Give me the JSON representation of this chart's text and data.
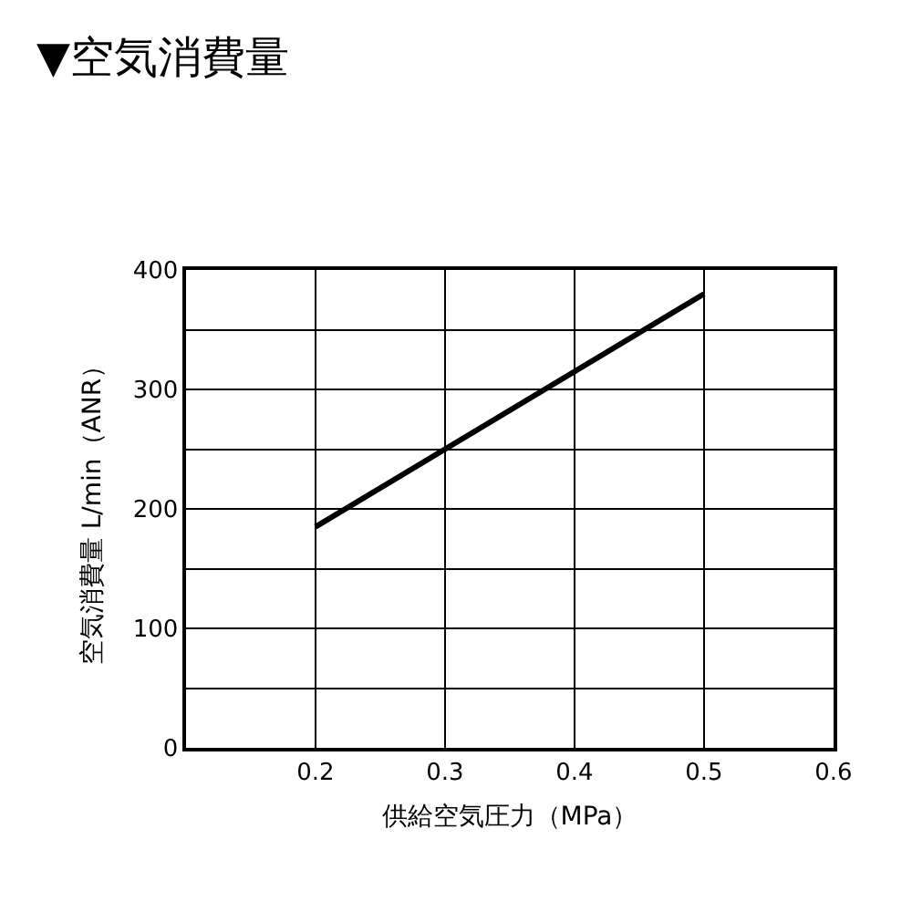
{
  "chart_data": {
    "type": "line",
    "title": "▼空気消費量",
    "xlabel": "供給空気圧力（MPa）",
    "ylabel": "空気消費量 L/min（ANR）",
    "x": [
      0.2,
      0.5
    ],
    "series": [
      {
        "color": "#000000",
        "values": [
          185,
          380
        ]
      }
    ],
    "xlim": [
      0.1,
      0.6
    ],
    "xticks": [
      0.2,
      0.3,
      0.4,
      0.5,
      0.6
    ],
    "ylim": [
      0,
      400
    ],
    "yticks": [
      0,
      {
        "value": 50,
        "label": null
      },
      100,
      {
        "value": 150,
        "label": null
      },
      200,
      {
        "value": 250,
        "label": null
      },
      300,
      {
        "value": 350,
        "label": null
      },
      400
    ],
    "grid": true,
    "marker": "none",
    "line_style": "solid"
  }
}
